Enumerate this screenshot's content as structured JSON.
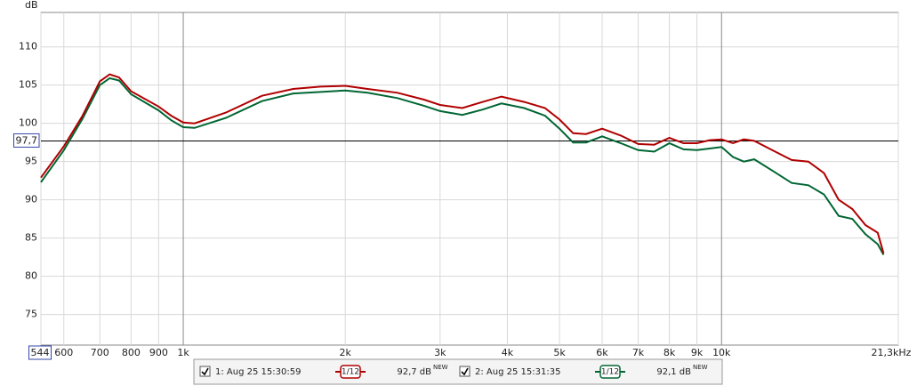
{
  "chart_data": {
    "type": "line",
    "y_axis_label": "dB",
    "xscale": "log",
    "xlim": [
      544,
      21300
    ],
    "ylim": [
      71,
      114.5
    ],
    "xticks": [
      {
        "value": 544,
        "label": "544"
      },
      600,
      700,
      800,
      900,
      {
        "value": 1000,
        "label": "1k"
      },
      {
        "value": 2000,
        "label": "2k"
      },
      {
        "value": 3000,
        "label": "3k"
      },
      {
        "value": 4000,
        "label": "4k"
      },
      {
        "value": 5000,
        "label": "5k"
      },
      {
        "value": 6000,
        "label": "6k"
      },
      {
        "value": 7000,
        "label": "7k"
      },
      {
        "value": 8000,
        "label": "8k"
      },
      {
        "value": 9000,
        "label": "9k"
      },
      {
        "value": 10000,
        "label": "10k"
      },
      {
        "value": 21300,
        "label": "21,3kHz"
      }
    ],
    "yticks": [
      75,
      80,
      85,
      90,
      95,
      100,
      105,
      110
    ],
    "grid": true,
    "reference_line": {
      "value": 97.7,
      "label": "97,7"
    },
    "x": [
      544,
      600,
      650,
      700,
      730,
      760,
      800,
      900,
      950,
      1000,
      1050,
      1200,
      1400,
      1600,
      1800,
      2000,
      2200,
      2500,
      2800,
      3000,
      3300,
      3600,
      3900,
      4300,
      4700,
      5000,
      5300,
      5600,
      6000,
      6500,
      7000,
      7500,
      8000,
      8500,
      9000,
      9500,
      10000,
      10500,
      11000,
      11500,
      12500,
      13500,
      14500,
      15500,
      16500,
      17500,
      18500,
      19500,
      20000
    ],
    "series": [
      {
        "name": "1: Aug 25 15:30:59",
        "color": "#b00000",
        "smoothing": "1/12",
        "legend_value": "92,7 dB",
        "legend_badge": "NEW",
        "values": [
          92.9,
          97.0,
          101.0,
          105.5,
          106.4,
          106.0,
          104.2,
          102.2,
          101.0,
          100.1,
          100.0,
          101.4,
          103.6,
          104.5,
          104.8,
          104.9,
          104.5,
          104.0,
          103.1,
          102.4,
          102.0,
          102.8,
          103.5,
          102.8,
          102.0,
          100.5,
          98.7,
          98.6,
          99.3,
          98.4,
          97.3,
          97.2,
          98.1,
          97.4,
          97.4,
          97.8,
          97.9,
          97.4,
          97.9,
          97.7,
          96.4,
          95.2,
          95.0,
          93.5,
          90.0,
          88.8,
          86.7,
          85.7,
          83.0
        ]
      },
      {
        "name": "2: Aug 25 15:31:35",
        "color": "#006633",
        "smoothing": "1/12",
        "legend_value": "92,1 dB",
        "legend_badge": "NEW",
        "values": [
          92.3,
          96.5,
          100.6,
          105.0,
          105.9,
          105.6,
          103.8,
          101.7,
          100.4,
          99.5,
          99.4,
          100.7,
          102.9,
          103.9,
          104.1,
          104.3,
          104.0,
          103.3,
          102.3,
          101.6,
          101.1,
          101.8,
          102.6,
          102.0,
          101.0,
          99.3,
          97.5,
          97.5,
          98.3,
          97.4,
          96.5,
          96.3,
          97.4,
          96.6,
          96.5,
          96.7,
          96.9,
          95.6,
          95.0,
          95.3,
          93.7,
          92.2,
          91.9,
          90.7,
          87.9,
          87.5,
          85.5,
          84.2,
          82.8
        ]
      }
    ]
  }
}
